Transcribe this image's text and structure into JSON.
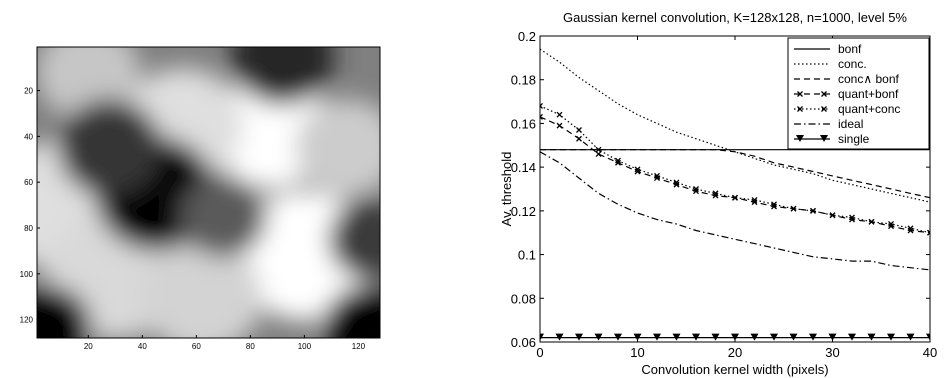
{
  "chart_data": [
    {
      "type": "heatmap",
      "xticks": [
        20,
        40,
        60,
        80,
        100,
        120
      ],
      "yticks": [
        20,
        40,
        60,
        80,
        100,
        120
      ],
      "xlim": [
        1,
        128
      ],
      "ylim": [
        1,
        128
      ],
      "colormap": "gray",
      "blobs": [
        {
          "x": 88,
          "y": 38,
          "v": 1.0,
          "r": 14
        },
        {
          "x": 100,
          "y": 92,
          "v": 1.0,
          "r": 16
        },
        {
          "x": 55,
          "y": 35,
          "v": 0.75,
          "r": 14
        },
        {
          "x": 10,
          "y": 70,
          "v": 0.75,
          "r": 16
        },
        {
          "x": 30,
          "y": 100,
          "v": 0.7,
          "r": 16
        },
        {
          "x": 62,
          "y": 110,
          "v": 0.65,
          "r": 14
        },
        {
          "x": 116,
          "y": 45,
          "v": 0.6,
          "r": 12
        },
        {
          "x": 20,
          "y": 12,
          "v": 0.55,
          "r": 12
        },
        {
          "x": 45,
          "y": 65,
          "v": -1.0,
          "r": 14
        },
        {
          "x": 28,
          "y": 45,
          "v": -0.6,
          "r": 12
        },
        {
          "x": 5,
          "y": 123,
          "v": -1.0,
          "r": 10
        },
        {
          "x": 123,
          "y": 123,
          "v": -1.0,
          "r": 10
        },
        {
          "x": 92,
          "y": 5,
          "v": -0.7,
          "r": 12
        },
        {
          "x": 125,
          "y": 85,
          "v": -0.55,
          "r": 10
        },
        {
          "x": 70,
          "y": 75,
          "v": -0.3,
          "r": 10
        }
      ]
    },
    {
      "type": "line",
      "title": "Gaussian kernel convolution, K=128x128, n=1000, level 5%",
      "xlabel": "Convolution kernel width (pixels)",
      "ylabel": "Av. threshold",
      "xlim": [
        0,
        40
      ],
      "ylim": [
        0.06,
        0.2
      ],
      "xticks": [
        0,
        10,
        20,
        30,
        40
      ],
      "yticks": [
        0.06,
        0.08,
        0.1,
        0.12,
        0.14,
        0.16,
        0.18,
        0.2
      ],
      "ytick_labels": [
        "0.06",
        "0.08",
        "0.1",
        "0.12",
        "0.14",
        "0.16",
        "0.18",
        "0.2"
      ],
      "legend_position": "top-right",
      "series": [
        {
          "name": "bonf",
          "style": "solid",
          "marker": "none",
          "x": [
            0,
            40
          ],
          "y": [
            0.148,
            0.148
          ]
        },
        {
          "name": "conc.",
          "style": "dotted",
          "marker": "none",
          "x": [
            0,
            2,
            4,
            6,
            8,
            10,
            12,
            14,
            16,
            18,
            20,
            22,
            24,
            26,
            28,
            30,
            32,
            34,
            36,
            38,
            40
          ],
          "y": [
            0.194,
            0.188,
            0.181,
            0.175,
            0.169,
            0.164,
            0.16,
            0.156,
            0.153,
            0.15,
            0.147,
            0.144,
            0.141,
            0.139,
            0.137,
            0.134,
            0.132,
            0.13,
            0.128,
            0.126,
            0.124
          ]
        },
        {
          "name": "conc∧ bonf",
          "style": "dashed",
          "marker": "none",
          "x": [
            0,
            18,
            20,
            22,
            24,
            26,
            28,
            30,
            32,
            34,
            36,
            38,
            40
          ],
          "y": [
            0.148,
            0.148,
            0.147,
            0.145,
            0.142,
            0.14,
            0.138,
            0.136,
            0.134,
            0.132,
            0.13,
            0.128,
            0.126
          ]
        },
        {
          "name": "quant+bonf",
          "style": "dashed",
          "marker": "x",
          "x": [
            0,
            2,
            4,
            6,
            8,
            10,
            12,
            14,
            16,
            18,
            20,
            22,
            24,
            26,
            28,
            30,
            32,
            34,
            36,
            38,
            40
          ],
          "y": [
            0.163,
            0.159,
            0.153,
            0.146,
            0.142,
            0.138,
            0.135,
            0.132,
            0.129,
            0.127,
            0.126,
            0.124,
            0.122,
            0.121,
            0.12,
            0.118,
            0.116,
            0.115,
            0.113,
            0.111,
            0.11
          ]
        },
        {
          "name": "quant+conc",
          "style": "dotted",
          "marker": "x",
          "x": [
            0,
            2,
            4,
            6,
            8,
            10,
            12,
            14,
            16,
            18,
            20,
            22,
            24,
            26,
            28,
            30,
            32,
            34,
            36,
            38,
            40
          ],
          "y": [
            0.168,
            0.164,
            0.157,
            0.148,
            0.143,
            0.139,
            0.136,
            0.133,
            0.13,
            0.128,
            0.126,
            0.125,
            0.123,
            0.121,
            0.12,
            0.118,
            0.117,
            0.115,
            0.114,
            0.112,
            0.11
          ]
        },
        {
          "name": "ideal",
          "style": "dashdot",
          "marker": "none",
          "x": [
            0,
            2,
            4,
            6,
            8,
            10,
            12,
            14,
            16,
            18,
            20,
            22,
            24,
            26,
            28,
            30,
            32,
            34,
            36,
            38,
            40
          ],
          "y": [
            0.147,
            0.142,
            0.135,
            0.128,
            0.123,
            0.119,
            0.116,
            0.114,
            0.111,
            0.109,
            0.107,
            0.105,
            0.103,
            0.101,
            0.099,
            0.098,
            0.097,
            0.097,
            0.095,
            0.094,
            0.093
          ]
        },
        {
          "name": "single",
          "style": "solid",
          "marker": "triangle-down",
          "x": [
            0,
            2,
            4,
            6,
            8,
            10,
            12,
            14,
            16,
            18,
            20,
            22,
            24,
            26,
            28,
            30,
            32,
            34,
            36,
            38,
            40
          ],
          "y": [
            0.062,
            0.062,
            0.062,
            0.062,
            0.062,
            0.062,
            0.062,
            0.062,
            0.062,
            0.062,
            0.062,
            0.062,
            0.062,
            0.062,
            0.062,
            0.062,
            0.062,
            0.062,
            0.062,
            0.062,
            0.062
          ]
        }
      ]
    }
  ]
}
